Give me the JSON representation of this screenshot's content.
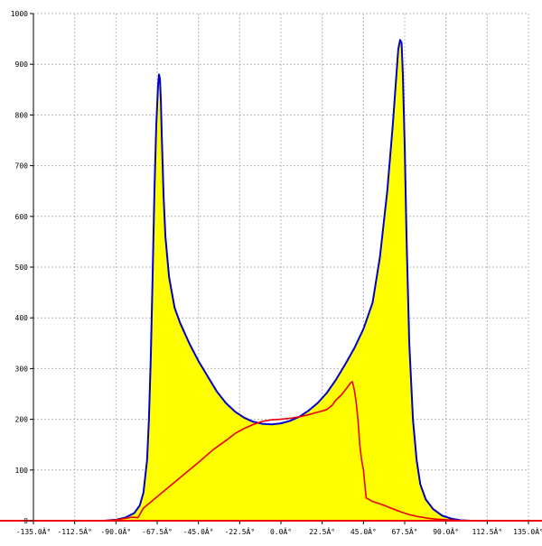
{
  "chart_data": {
    "type": "area",
    "title": "",
    "xlabel": "",
    "ylabel": "",
    "xlim": [
      -135,
      135
    ],
    "ylim": [
      0,
      1000
    ],
    "grid": true,
    "x_ticks": [
      -135,
      -112.5,
      -90,
      -67.5,
      -45,
      -22.5,
      0,
      22.5,
      45,
      67.5,
      90,
      112.5,
      135
    ],
    "x_tick_labels": [
      "-135.0Â°",
      "-112.5Â°",
      "-90.0Â°",
      "-67.5Â°",
      "-45.0Â°",
      "-22.5Â°",
      "0.0Â°",
      "22.5Â°",
      "45.0Â°",
      "67.5Â°",
      "90.0Â°",
      "112.5Â°",
      "135.0Â°"
    ],
    "y_ticks": [
      0,
      100,
      200,
      300,
      400,
      500,
      600,
      700,
      800,
      900,
      1000
    ],
    "y_tick_labels": [
      "0",
      "100",
      "200",
      "300",
      "400",
      "500",
      "600",
      "700",
      "800",
      "900",
      "1000"
    ],
    "series": [
      {
        "style": "filled-area",
        "line_color": "#0000cc",
        "fill_color": "#ffff00",
        "points": [
          [
            -96,
            0
          ],
          [
            -90,
            2
          ],
          [
            -85,
            6
          ],
          [
            -80,
            15
          ],
          [
            -77,
            30
          ],
          [
            -75,
            55
          ],
          [
            -73,
            120
          ],
          [
            -72,
            200
          ],
          [
            -71,
            320
          ],
          [
            -70,
            480
          ],
          [
            -69,
            650
          ],
          [
            -68,
            780
          ],
          [
            -67,
            860
          ],
          [
            -66.5,
            880
          ],
          [
            -66,
            872
          ],
          [
            -65.5,
            830
          ],
          [
            -65,
            760
          ],
          [
            -64,
            640
          ],
          [
            -63,
            560
          ],
          [
            -61,
            480
          ],
          [
            -58,
            420
          ],
          [
            -55,
            390
          ],
          [
            -50,
            350
          ],
          [
            -45,
            315
          ],
          [
            -40,
            285
          ],
          [
            -35,
            255
          ],
          [
            -30,
            232
          ],
          [
            -25,
            215
          ],
          [
            -20,
            203
          ],
          [
            -15,
            195
          ],
          [
            -10,
            191
          ],
          [
            -5,
            190
          ],
          [
            0,
            192
          ],
          [
            5,
            197
          ],
          [
            10,
            205
          ],
          [
            15,
            217
          ],
          [
            20,
            232
          ],
          [
            25,
            252
          ],
          [
            30,
            278
          ],
          [
            35,
            308
          ],
          [
            40,
            340
          ],
          [
            45,
            378
          ],
          [
            50,
            430
          ],
          [
            54,
            520
          ],
          [
            58,
            650
          ],
          [
            61,
            780
          ],
          [
            63,
            880
          ],
          [
            64,
            930
          ],
          [
            65,
            948
          ],
          [
            65.8,
            942
          ],
          [
            66.5,
            880
          ],
          [
            67.5,
            740
          ],
          [
            68.5,
            560
          ],
          [
            70,
            350
          ],
          [
            72,
            200
          ],
          [
            74,
            120
          ],
          [
            76,
            72
          ],
          [
            79,
            42
          ],
          [
            83,
            23
          ],
          [
            88,
            10
          ],
          [
            93,
            4
          ],
          [
            98,
            1
          ],
          [
            104,
            0
          ]
        ]
      },
      {
        "style": "line",
        "line_color": "#ee0000",
        "points": [
          [
            -140,
            0
          ],
          [
            -100,
            0
          ],
          [
            -92,
            1
          ],
          [
            -86,
            4
          ],
          [
            -81,
            7
          ],
          [
            -78,
            6
          ],
          [
            -75,
            25
          ],
          [
            -65,
            55
          ],
          [
            -55,
            85
          ],
          [
            -45,
            115
          ],
          [
            -37,
            140
          ],
          [
            -30,
            158
          ],
          [
            -25,
            172
          ],
          [
            -20,
            182
          ],
          [
            -15,
            190
          ],
          [
            -10,
            196
          ],
          [
            -5,
            199
          ],
          [
            0,
            200
          ],
          [
            5,
            202
          ],
          [
            10,
            205
          ],
          [
            15,
            209
          ],
          [
            20,
            214
          ],
          [
            25,
            219
          ],
          [
            28,
            228
          ],
          [
            30,
            238
          ],
          [
            33,
            248
          ],
          [
            36,
            262
          ],
          [
            38,
            272
          ],
          [
            39,
            274
          ],
          [
            40,
            258
          ],
          [
            41,
            235
          ],
          [
            42,
            200
          ],
          [
            43,
            150
          ],
          [
            44,
            120
          ],
          [
            45,
            100
          ],
          [
            45.8,
            70
          ],
          [
            46.5,
            45
          ],
          [
            50,
            38
          ],
          [
            55,
            32
          ],
          [
            60,
            25
          ],
          [
            65,
            18
          ],
          [
            70,
            12
          ],
          [
            75,
            8
          ],
          [
            80,
            5
          ],
          [
            85,
            3
          ],
          [
            90,
            2
          ],
          [
            95,
            1
          ],
          [
            100,
            0
          ],
          [
            140,
            0
          ]
        ]
      }
    ]
  }
}
